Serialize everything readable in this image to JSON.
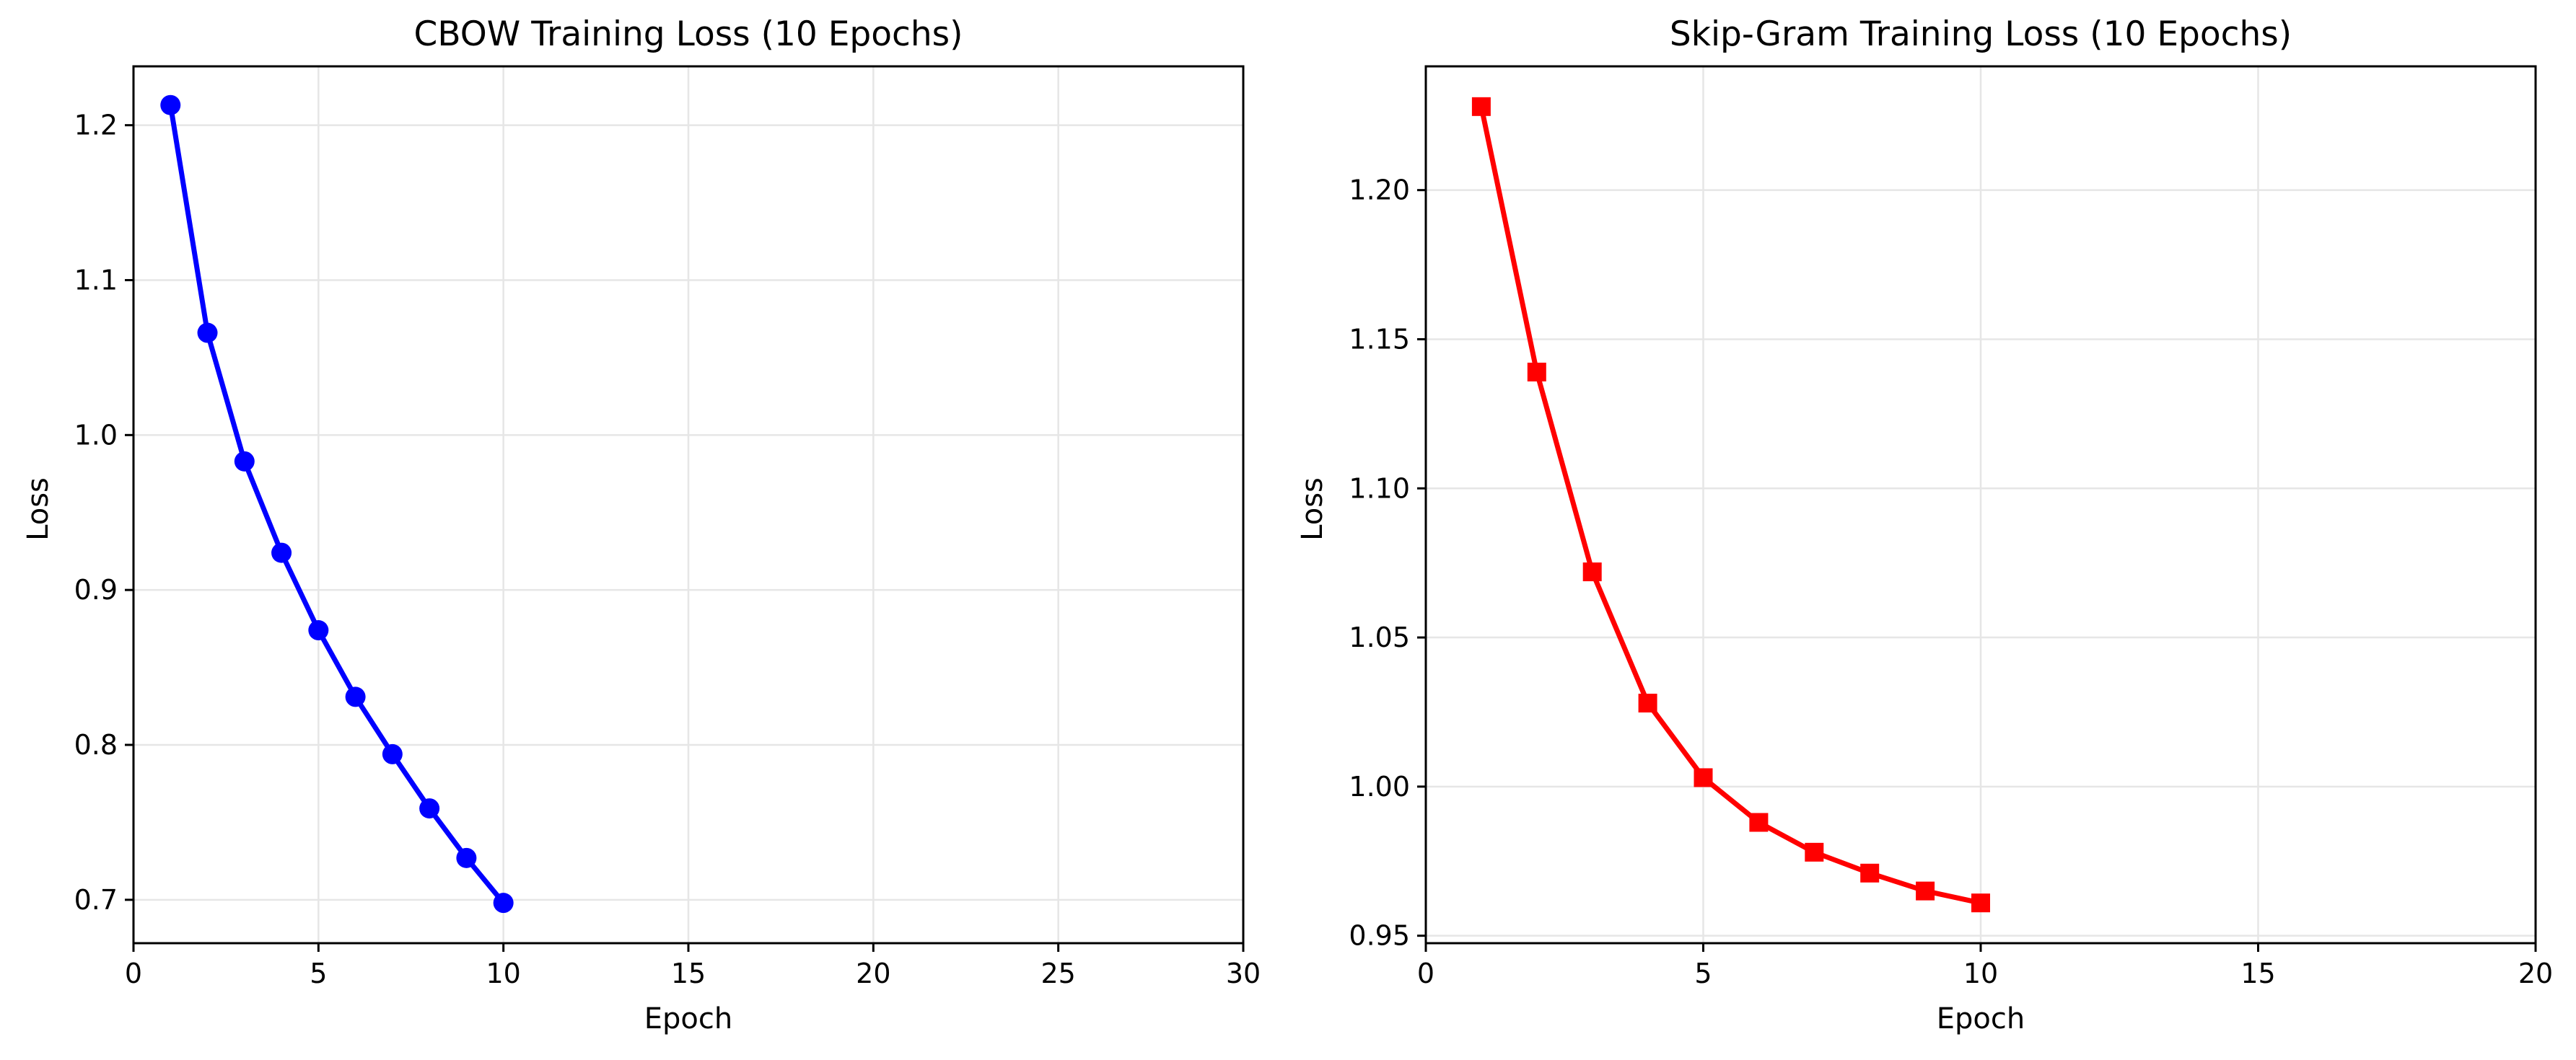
{
  "chart_data": [
    {
      "type": "line",
      "title": "CBOW Training Loss (10 Epochs)",
      "xlabel": "Epoch",
      "ylabel": "Loss",
      "xlim": [
        0,
        30
      ],
      "ylim": [
        0.672,
        1.238
      ],
      "xticks": [
        0,
        5,
        10,
        15,
        20,
        25,
        30
      ],
      "yticks": [
        0.7,
        0.8,
        0.9,
        1.0,
        1.1,
        1.2
      ],
      "yticks_labels": [
        "0.7",
        "0.8",
        "0.9",
        "1.0",
        "1.1",
        "1.2"
      ],
      "grid": true,
      "series": [
        {
          "color": "#0000ff",
          "marker": "circle",
          "x": [
            1,
            2,
            3,
            4,
            5,
            6,
            7,
            8,
            9,
            10
          ],
          "y": [
            1.213,
            1.066,
            0.983,
            0.924,
            0.874,
            0.831,
            0.794,
            0.759,
            0.727,
            0.698
          ]
        }
      ]
    },
    {
      "type": "line",
      "title": "Skip-Gram Training Loss (10 Epochs)",
      "xlabel": "Epoch",
      "ylabel": "Loss",
      "xlim": [
        0,
        20
      ],
      "ylim": [
        0.9475,
        1.2415
      ],
      "xticks": [
        0,
        5,
        10,
        15,
        20
      ],
      "yticks": [
        0.95,
        1.0,
        1.05,
        1.1,
        1.15,
        1.2
      ],
      "yticks_labels": [
        "0.95",
        "1.00",
        "1.05",
        "1.10",
        "1.15",
        "1.20"
      ],
      "grid": true,
      "series": [
        {
          "color": "#ff0000",
          "marker": "square",
          "x": [
            1,
            2,
            3,
            4,
            5,
            6,
            7,
            8,
            9,
            10
          ],
          "y": [
            1.228,
            1.139,
            1.072,
            1.028,
            1.003,
            0.988,
            0.978,
            0.971,
            0.965,
            0.961
          ]
        }
      ]
    }
  ]
}
